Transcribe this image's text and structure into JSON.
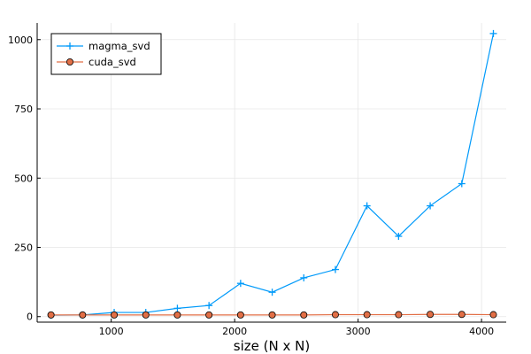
{
  "chart_data": {
    "type": "line",
    "title": "",
    "xlabel": "size (N x N)",
    "ylabel": "",
    "xlim": [
      400,
      4200
    ],
    "ylim": [
      -20,
      1060
    ],
    "xticks": [
      1000,
      2000,
      3000,
      4000
    ],
    "yticks": [
      0,
      250,
      500,
      750,
      1000
    ],
    "xtick_labels": [
      "1000",
      "2000",
      "3000",
      "4000"
    ],
    "ytick_labels": [
      "0",
      "250",
      "500",
      "750",
      "1000"
    ],
    "grid": true,
    "legend_position": "top-left",
    "x": [
      512,
      768,
      1024,
      1280,
      1536,
      1792,
      2048,
      2304,
      2560,
      2816,
      3072,
      3328,
      3584,
      3840,
      4096
    ],
    "series": [
      {
        "name": "magma_svd",
        "color": "#009AFA",
        "marker": "plus",
        "values": [
          5,
          6,
          15,
          15,
          30,
          40,
          120,
          88,
          140,
          170,
          400,
          290,
          400,
          480,
          1022
        ]
      },
      {
        "name": "cuda_svd",
        "color": "#E26F46",
        "marker": "circle",
        "values": [
          6,
          6,
          6,
          6,
          6,
          6,
          6,
          6,
          6,
          7,
          7,
          7,
          8,
          8,
          7
        ]
      }
    ]
  }
}
